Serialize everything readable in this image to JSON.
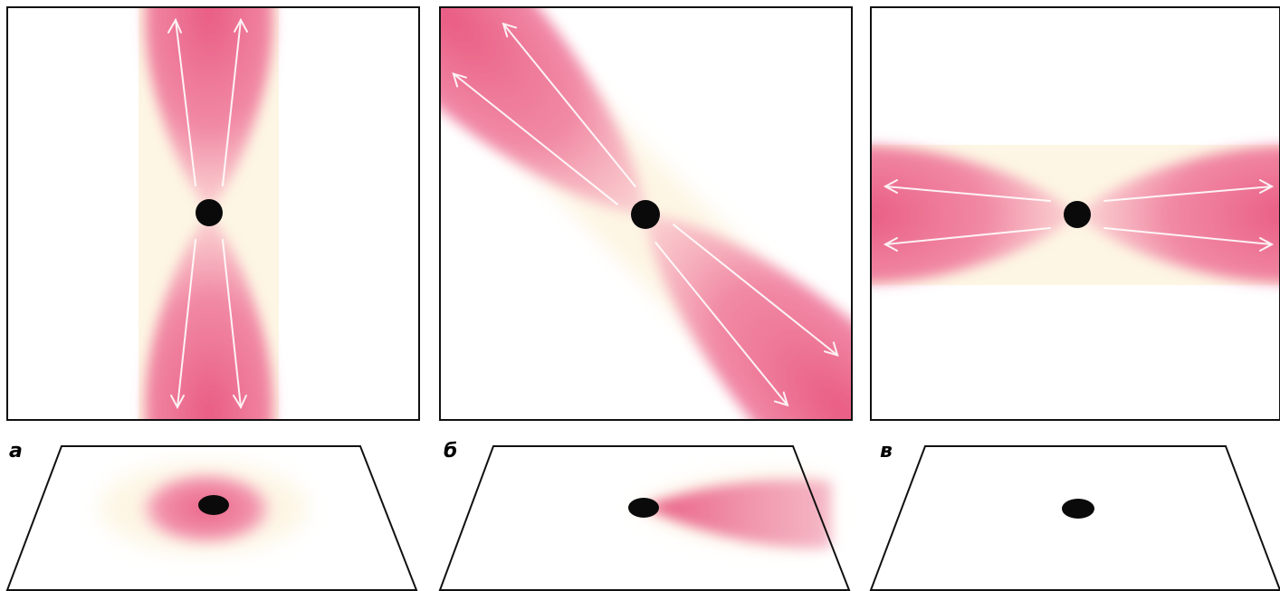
{
  "panels": [
    {
      "id": "a",
      "label": "а",
      "beam_direction": "vertical",
      "ground_pattern": "circle"
    },
    {
      "id": "b",
      "label": "б",
      "beam_direction": "diagonal",
      "ground_pattern": "one-sided-cone"
    },
    {
      "id": "c",
      "label": "в",
      "beam_direction": "horizontal",
      "ground_pattern": "dot-only"
    }
  ],
  "colors": {
    "lobe": "#e8547e",
    "glow": "#fdf6e4",
    "arrow": "#ffffff",
    "source": "#0a0a0a",
    "frame": "#111111"
  }
}
